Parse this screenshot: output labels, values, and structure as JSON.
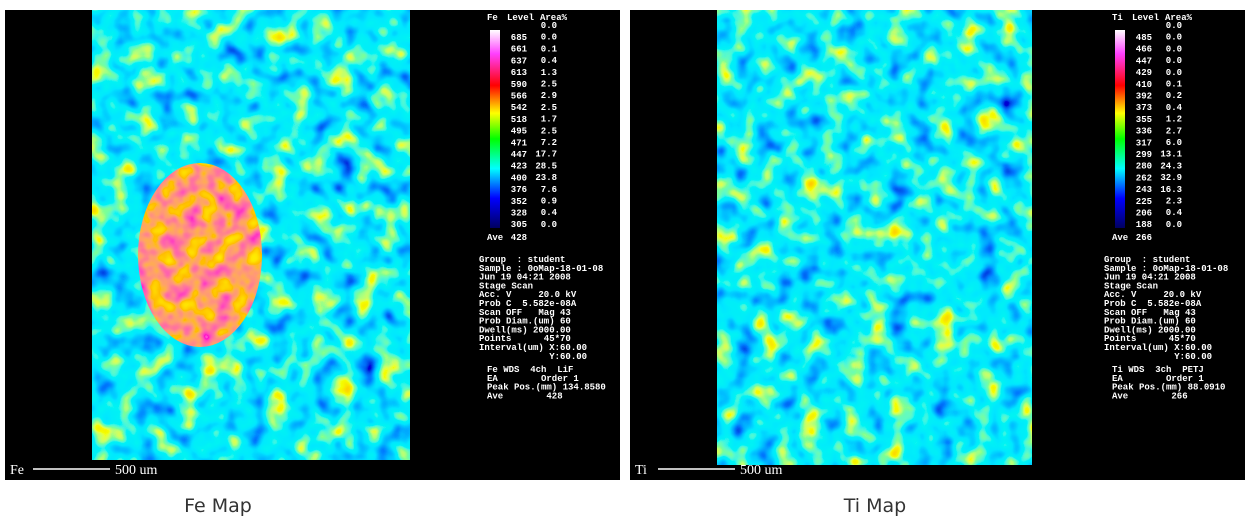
{
  "panels": [
    {
      "element": "Fe",
      "level_header": "Level",
      "area_header": "Area%",
      "levels": [
        "685",
        "661",
        "637",
        "613",
        "590",
        "566",
        "542",
        "518",
        "495",
        "471",
        "447",
        "423",
        "400",
        "376",
        "352",
        "328",
        "305"
      ],
      "areas": [
        "0.0",
        "0.0",
        "0.1",
        "0.4",
        "1.3",
        "2.5",
        "2.9",
        "2.5",
        "1.7",
        "2.5",
        "7.2",
        "17.7",
        "28.5",
        "23.8",
        "7.6",
        "0.9",
        "0.4",
        "0.0"
      ],
      "ave_label": "Ave",
      "ave_value": "428",
      "info": [
        "Group  : student",
        "Sample : 0oMap-18-01-08",
        "Jun 19 04:21 2008",
        "Stage Scan",
        "Acc. V     20.0 kV",
        "Prob C  5.582e-08A",
        "Scan OFF   Mag 43",
        "Prob Diam.(um) 60",
        "Dwell(ms) 2000.00",
        "Points      45*70",
        "Interval(um) X:60.00",
        "             Y:60.00"
      ],
      "wds": [
        "Fe WDS  4ch  LiF",
        "EA        Order 1",
        "Peak Pos.(mm) 134.8580",
        "Ave        428"
      ],
      "scale_element": "Fe",
      "scale_label": "500 um",
      "caption": "Fe Map"
    },
    {
      "element": "Ti",
      "level_header": "Level",
      "area_header": "Area%",
      "levels": [
        "485",
        "466",
        "447",
        "429",
        "410",
        "392",
        "373",
        "355",
        "336",
        "317",
        "299",
        "280",
        "262",
        "243",
        "225",
        "206",
        "188"
      ],
      "areas": [
        "0.0",
        "0.0",
        "0.0",
        "0.0",
        "0.0",
        "0.1",
        "0.2",
        "0.4",
        "1.2",
        "2.7",
        "6.0",
        "13.1",
        "24.3",
        "32.9",
        "16.3",
        "2.3",
        "0.4",
        "0.0"
      ],
      "ave_label": "Ave",
      "ave_value": "266",
      "info": [
        "Group  : student",
        "Sample : 0oMap-18-01-08",
        "Jun 19 04:21 2008",
        "Stage Scan",
        "Acc. V     20.0 kV",
        "Prob C  5.582e-08A",
        "Scan OFF   Mag 43",
        "Prob Diam.(um) 60",
        "Dwell(ms) 2000.00",
        "Points      45*70",
        "Interval(um) X:60.00",
        "             Y:60.00"
      ],
      "wds": [
        "Ti WDS  3ch  PETJ",
        "EA        Order 1",
        "Peak Pos.(mm) 88.0910",
        "Ave        266"
      ],
      "scale_element": "Ti",
      "scale_label": "500 um",
      "caption": "Ti Map"
    }
  ]
}
